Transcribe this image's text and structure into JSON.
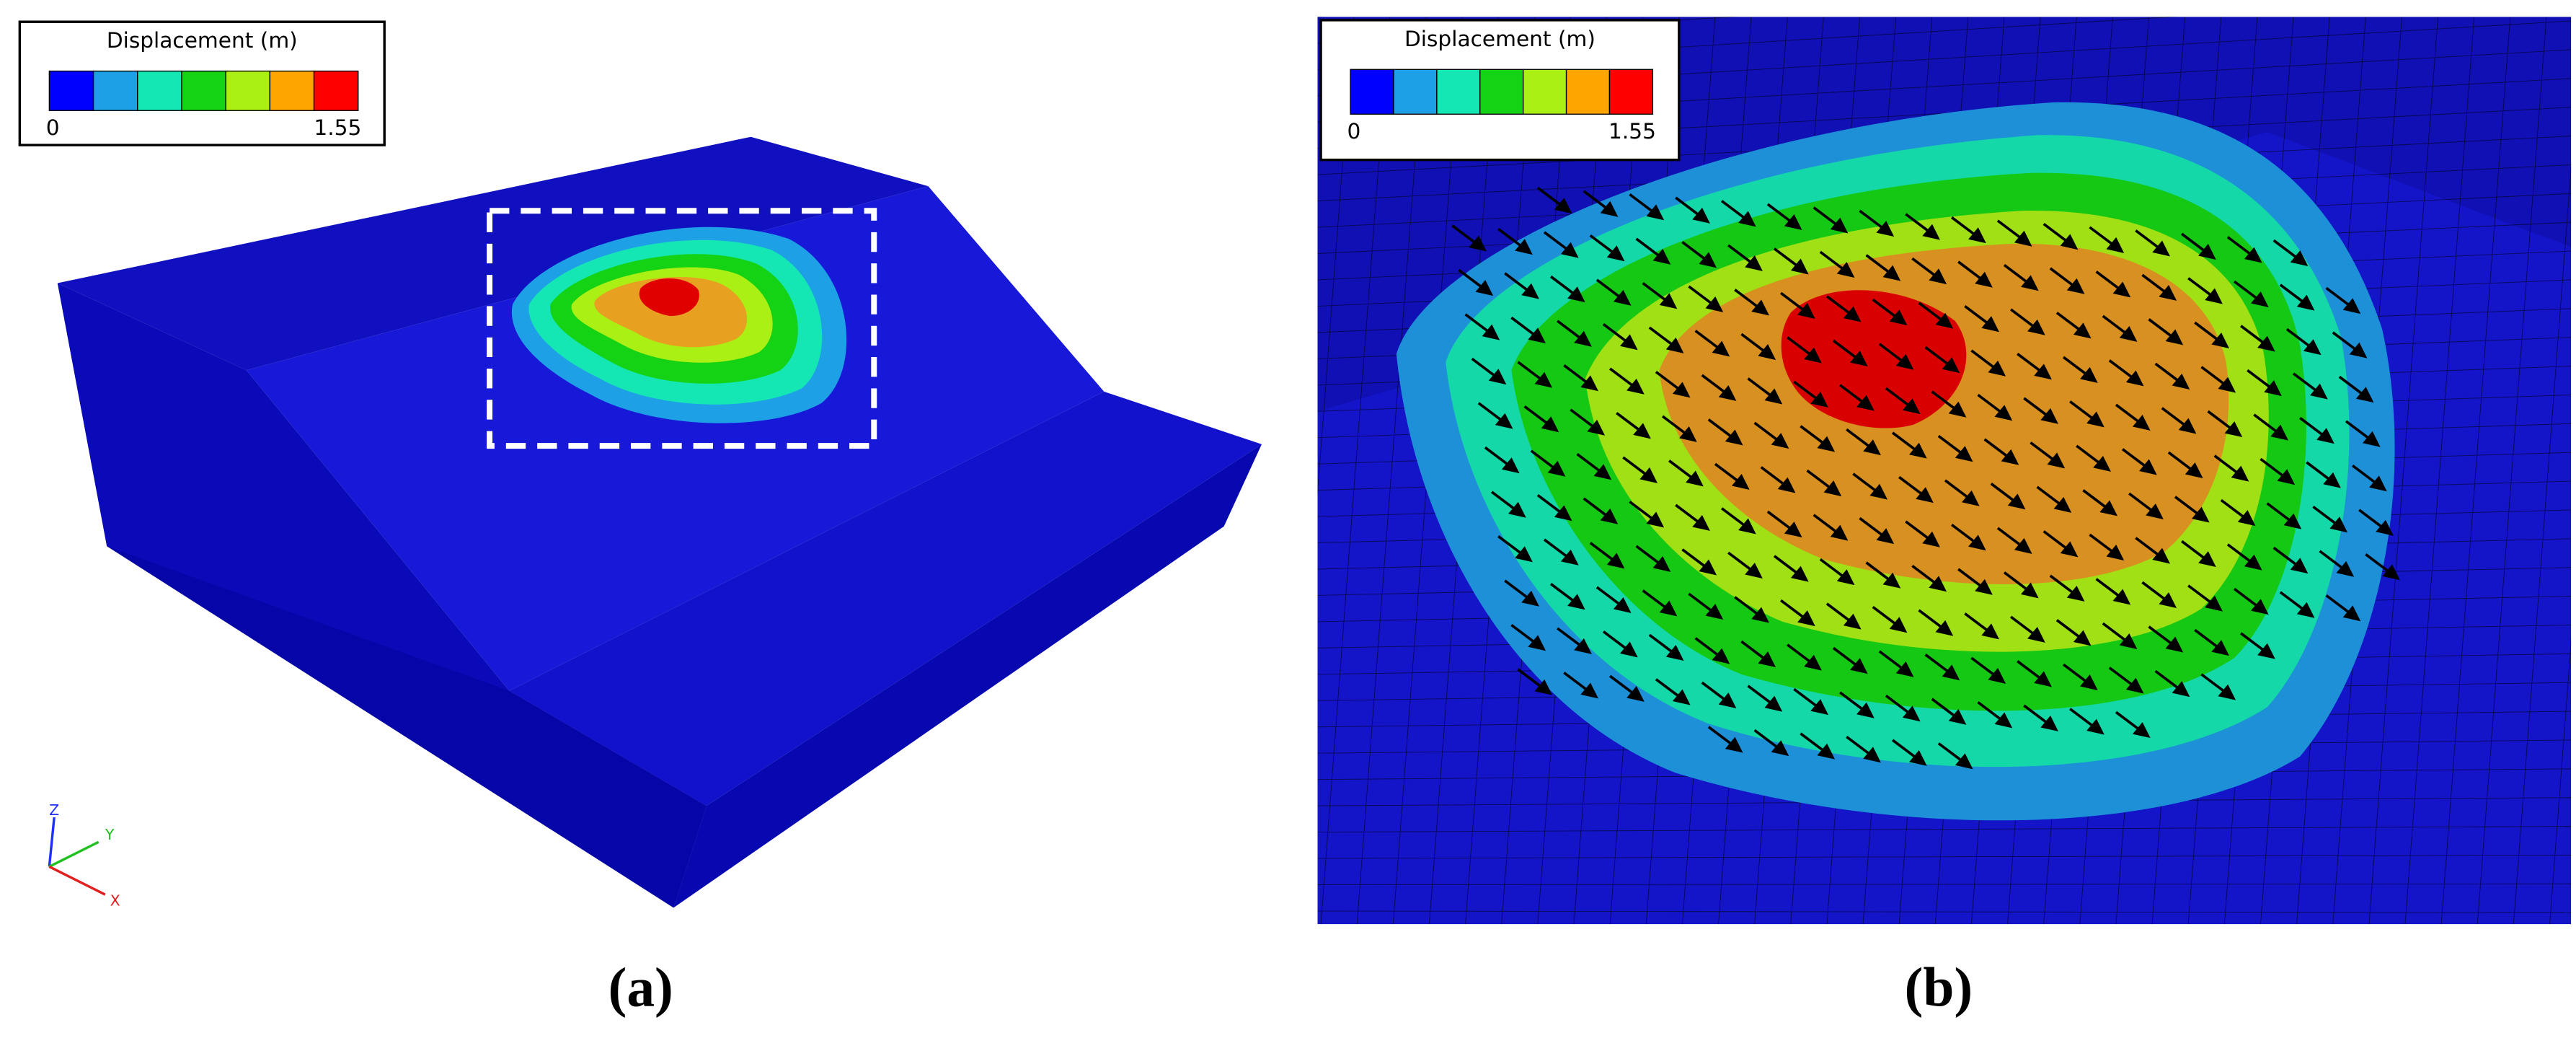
{
  "legend_colors": [
    "#0000ff",
    "#1ea0e6",
    "#14e6b4",
    "#14d214",
    "#aaf014",
    "#ffa500",
    "#ff0000"
  ],
  "panels": [
    {
      "legend": {
        "title": "Displacement (m)",
        "min": 0,
        "max": 1.55
      },
      "caption": "(a)"
    },
    {
      "legend": {
        "title": "Displacement (m)",
        "min": 0,
        "max": 1.55
      },
      "caption": "(b)"
    }
  ],
  "axes": {
    "z": "Z",
    "y": "Y",
    "x": "X"
  }
}
